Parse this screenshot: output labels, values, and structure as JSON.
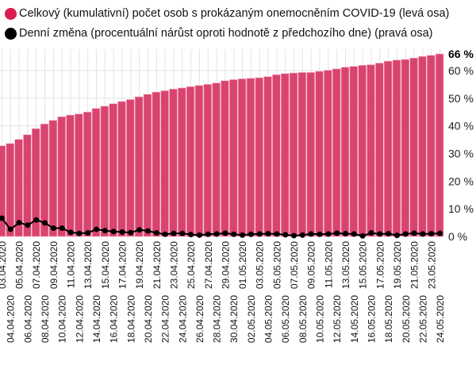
{
  "colors": {
    "bars": "#d9446f",
    "bar_edge": "#f3a9bf",
    "line": "#000000",
    "legend_bars": "#d81e4e",
    "grid": "#e3e3e3"
  },
  "legend": [
    {
      "label": "Celkový (kumulativní) počet osob s prokázaným onemocněním COVID-19 (levá osa)",
      "icon": "circle-red"
    },
    {
      "label": "Denní změna (procentuální nárůst oproti hodnotě z předchozího dne) (pravá osa)",
      "icon": "circle-black"
    }
  ],
  "chart_data": {
    "type": "bar+line",
    "x_start": "03.04.2020",
    "x_end": "24.05.2020",
    "right_axis": {
      "ticks": [
        "0 %",
        "10 %",
        "20 %",
        "30 %",
        "40 %",
        "50 %",
        "60 %"
      ],
      "max_label": "66 %",
      "range": [
        0,
        66
      ]
    },
    "series": [
      {
        "name": "Celkový (kumulativní) počet osob s prokázaným onemocněním COVID-19 (levá osa)",
        "type": "bar",
        "axis": "left (hidden; shown on right-axis scale)",
        "values": [
          32.8,
          33.6,
          35.1,
          36.8,
          39.0,
          40.7,
          42.0,
          43.3,
          43.9,
          44.3,
          45.0,
          46.3,
          47.1,
          48.0,
          48.8,
          49.5,
          50.5,
          51.4,
          52.2,
          52.7,
          53.3,
          53.7,
          54.2,
          54.6,
          55.0,
          55.5,
          56.3,
          56.7,
          57.0,
          57.2,
          57.4,
          57.8,
          58.5,
          58.9,
          59.1,
          59.3,
          59.3,
          59.7,
          60.1,
          60.6,
          61.2,
          61.5,
          61.9,
          62.1,
          62.7,
          63.4,
          63.8,
          64.0,
          64.5,
          65.1,
          65.5,
          66.0
        ]
      },
      {
        "name": "Denní změna (procentuální nárůst oproti hodnotě z předchozího dne) (pravá osa)",
        "type": "line",
        "axis": "right",
        "values": [
          6.6,
          2.6,
          5.0,
          4.1,
          6.0,
          4.9,
          3.0,
          3.0,
          1.5,
          1.1,
          1.3,
          2.6,
          2.1,
          1.8,
          1.6,
          1.4,
          2.4,
          2.0,
          1.3,
          0.8,
          1.1,
          1.1,
          0.7,
          0.5,
          0.8,
          0.9,
          1.2,
          0.8,
          0.5,
          0.8,
          0.9,
          1.0,
          0.9,
          0.6,
          0.3,
          0.5,
          0.9,
          0.8,
          0.9,
          1.2,
          1.0,
          0.9,
          0.2,
          1.3,
          0.9,
          1.0,
          0.4,
          0.9,
          1.2,
          0.9,
          1.0,
          1.1
        ]
      }
    ],
    "categories": [
      "03.04.2020",
      "04.04.2020",
      "05.04.2020",
      "06.04.2020",
      "07.04.2020",
      "08.04.2020",
      "09.04.2020",
      "10.04.2020",
      "11.04.2020",
      "12.04.2020",
      "13.04.2020",
      "14.04.2020",
      "15.04.2020",
      "16.04.2020",
      "17.04.2020",
      "18.04.2020",
      "19.04.2020",
      "20.04.2020",
      "21.04.2020",
      "22.04.2020",
      "23.04.2020",
      "24.04.2020",
      "25.04.2020",
      "26.04.2020",
      "27.04.2020",
      "28.04.2020",
      "29.04.2020",
      "30.04.2020",
      "01.05.2020",
      "02.05.2020",
      "03.05.2020",
      "04.05.2020",
      "05.05.2020",
      "06.05.2020",
      "07.05.2020",
      "08.05.2020",
      "09.05.2020",
      "10.05.2020",
      "11.05.2020",
      "12.05.2020",
      "13.05.2020",
      "14.05.2020",
      "15.05.2020",
      "16.05.2020",
      "17.05.2020",
      "18.05.2020",
      "19.05.2020",
      "20.05.2020",
      "21.05.2020",
      "22.05.2020",
      "23.05.2020",
      "24.05.2020"
    ],
    "grid": true,
    "legend_position": "top-left"
  }
}
